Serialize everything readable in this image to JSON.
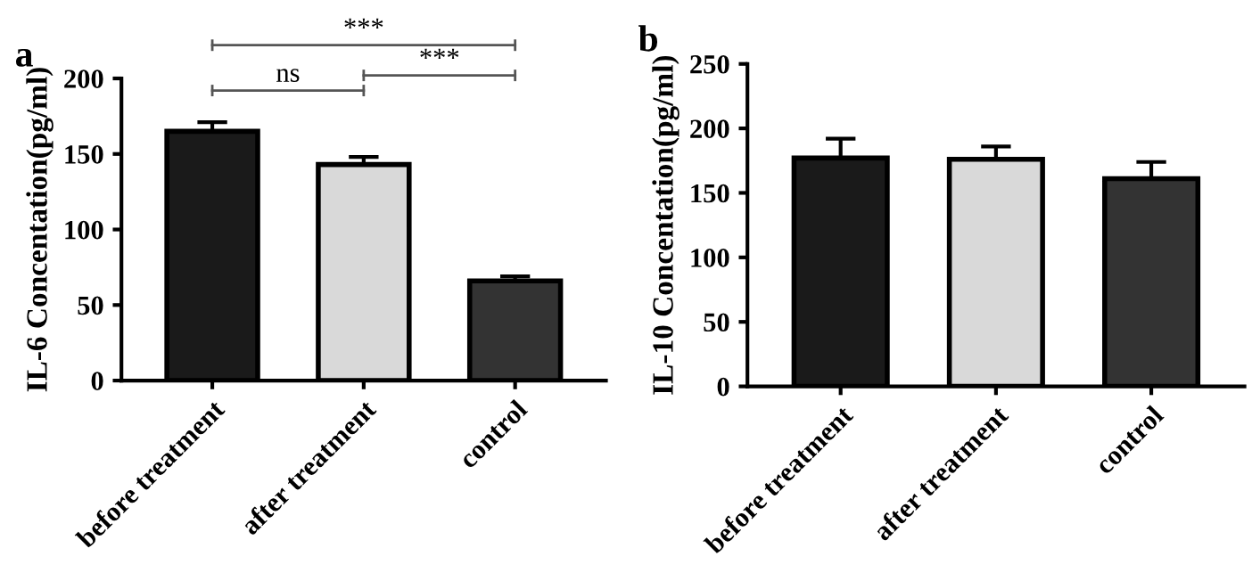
{
  "chart_data": [
    {
      "type": "bar",
      "title": "a",
      "ylabel": "IL-6 Concentation(pg/ml)",
      "categories": [
        "before treatment",
        "after treatment",
        "control"
      ],
      "values": [
        165,
        143,
        66
      ],
      "colors": [
        "#1a1a1a",
        "#d9d9d9",
        "#333333"
      ],
      "errors": [
        [
          165,
          171
        ],
        [
          143,
          148
        ],
        [
          66,
          69
        ]
      ],
      "ylim": [
        0,
        200
      ],
      "yticks": [
        0,
        50,
        100,
        150,
        200
      ],
      "grid": false,
      "legend": false,
      "annotations": [
        "ns",
        "***",
        "***"
      ]
    },
    {
      "type": "bar",
      "title": "b",
      "ylabel": "IL-10 Concentation(pg/ml)",
      "categories": [
        "before treatment",
        "after treatment",
        "control"
      ],
      "values": [
        177,
        176,
        161
      ],
      "colors": [
        "#1a1a1a",
        "#d9d9d9",
        "#333333"
      ],
      "errors": [
        [
          177,
          192
        ],
        [
          176,
          186
        ],
        [
          161,
          174
        ]
      ],
      "ylim": [
        0,
        250
      ],
      "yticks": [
        0,
        50,
        100,
        150,
        200,
        250
      ],
      "grid": false,
      "legend": false
    }
  ]
}
